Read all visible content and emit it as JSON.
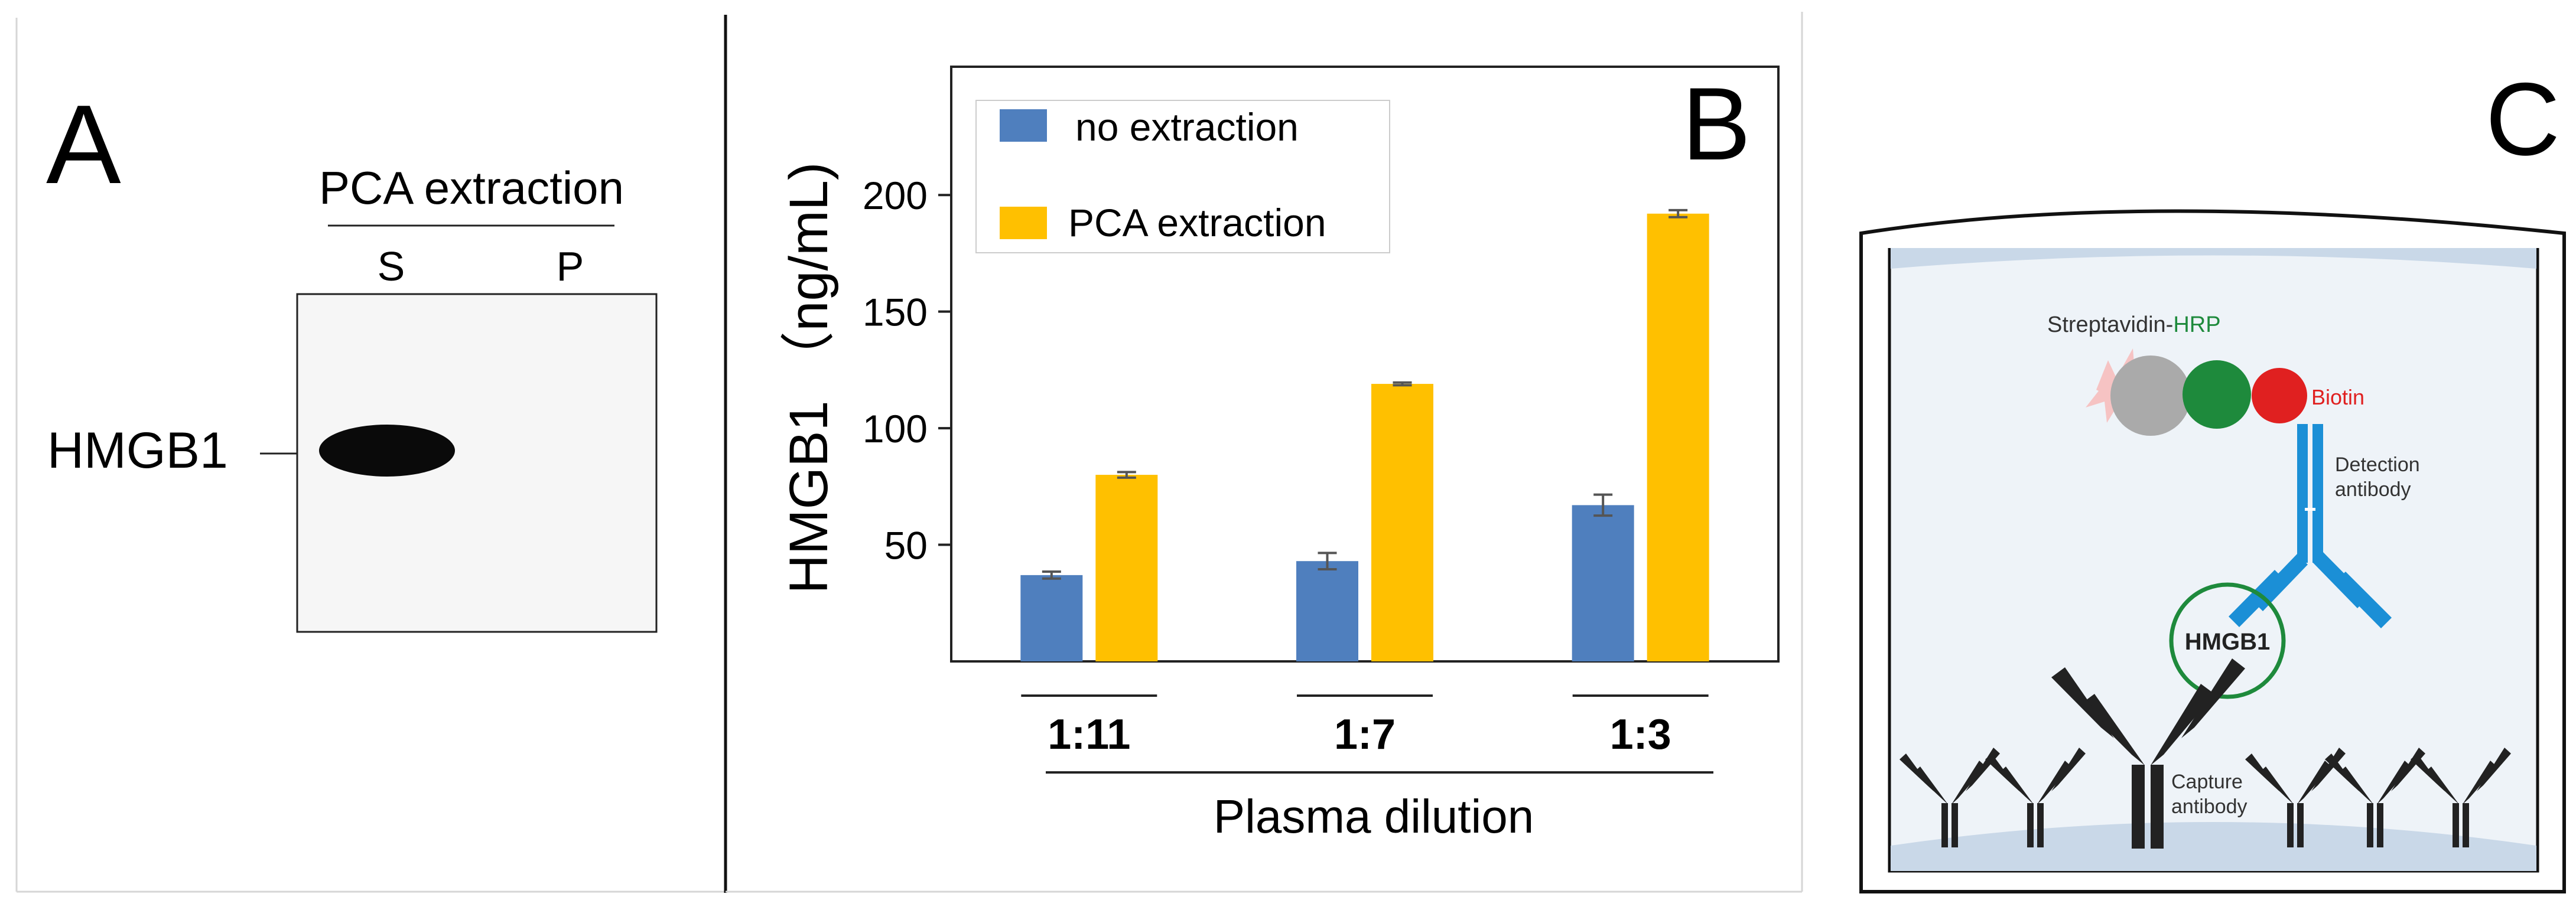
{
  "colors": {
    "no_extraction": "#4f7fbe",
    "pca_extraction": "#ffc000",
    "error_bar": "#555555",
    "green": "#1e8a3c",
    "red": "#e02020",
    "blue": "#1b8fd6",
    "gray": "#aaaaaa",
    "pink": "#f6c3c3",
    "plate_fill": "#eef3f8"
  },
  "panel_a": {
    "letter": "A",
    "header": "PCA extraction",
    "lane_s": "S",
    "lane_p": "P",
    "band_label": "HMGB1"
  },
  "panel_c": {
    "letter": "C",
    "streptavidin_prefix": "Streptavidin-",
    "streptavidin_suffix": "HRP",
    "biotin": "Biotin",
    "detection_line1": "Detection",
    "detection_line2": "antibody",
    "antigen": "HMGB1",
    "capture_line1": "Capture",
    "capture_line2": "antibody"
  },
  "chart_data": {
    "type": "bar",
    "panel_letter": "B",
    "title": "",
    "xlabel": "Plasma dilution",
    "ylabel": "HMGB1 （ng/mL)",
    "categories": [
      "1:11",
      "1:7",
      "1:3"
    ],
    "yticks": [
      50,
      100,
      150,
      200
    ],
    "ylim": [
      0,
      255
    ],
    "grid": false,
    "legend_position": "top-left",
    "series": [
      {
        "name": "no extraction",
        "color_key": "no_extraction",
        "values": [
          37,
          43,
          67
        ],
        "errors": [
          1.5,
          3.5,
          4.5
        ]
      },
      {
        "name": "PCA extraction",
        "color_key": "pca_extraction",
        "values": [
          80,
          119,
          192
        ],
        "errors": [
          1.2,
          0.6,
          1.5
        ]
      }
    ]
  }
}
